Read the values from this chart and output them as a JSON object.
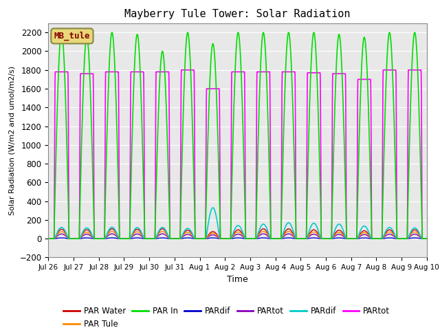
{
  "title": "Mayberry Tule Tower: Solar Radiation",
  "xlabel": "Time",
  "ylabel": "Solar Radiation (W/m2 and umol/m2/s)",
  "ylim": [
    -200,
    2300
  ],
  "yticks": [
    -200,
    0,
    200,
    400,
    600,
    800,
    1000,
    1200,
    1400,
    1600,
    1800,
    2000,
    2200
  ],
  "xlim": [
    0,
    15
  ],
  "num_days": 15,
  "bg_color": "#e8e8e8",
  "legend_box_color": "#e8d878",
  "legend_box_text": "MB_tule",
  "colors": {
    "par_water": "#cc0000",
    "par_tule": "#ff8800",
    "par_in": "#00dd00",
    "pardif_blue": "#0000cc",
    "partot_purple": "#8800bb",
    "pardif_cyan": "#00cccc",
    "partot_mag": "#ff00ff"
  },
  "legend_entries": [
    {
      "label": "PAR Water",
      "color": "#cc0000"
    },
    {
      "label": "PAR Tule",
      "color": "#ff8800"
    },
    {
      "label": "PAR In",
      "color": "#00dd00"
    },
    {
      "label": "PARdif",
      "color": "#0000cc"
    },
    {
      "label": "PARtot",
      "color": "#8800bb"
    },
    {
      "label": "PARdif",
      "color": "#00cccc"
    },
    {
      "label": "PARtot",
      "color": "#ff00ff"
    }
  ]
}
